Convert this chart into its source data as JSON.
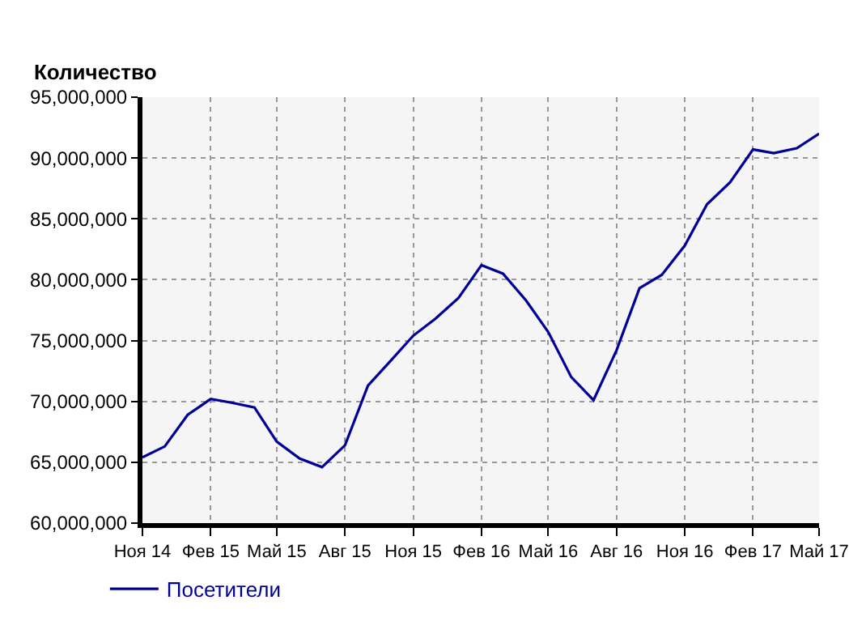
{
  "chart_data": {
    "type": "line",
    "ylabel": "Количество",
    "x": [
      "2014-11",
      "2014-12",
      "2015-01",
      "2015-02",
      "2015-03",
      "2015-04",
      "2015-05",
      "2015-06",
      "2015-07",
      "2015-08",
      "2015-09",
      "2015-10",
      "2015-11",
      "2015-12",
      "2016-01",
      "2016-02",
      "2016-03",
      "2016-04",
      "2016-05",
      "2016-06",
      "2016-07",
      "2016-08",
      "2016-09",
      "2016-10",
      "2016-11",
      "2016-12",
      "2017-01",
      "2017-02",
      "2017-03",
      "2017-04",
      "2017-05"
    ],
    "series": [
      {
        "name": "Посетители",
        "color": "#000099",
        "values": [
          65400000,
          66300000,
          68900000,
          70200000,
          69900000,
          69500000,
          66700000,
          65300000,
          64600000,
          66400000,
          71300000,
          73300000,
          75400000,
          76800000,
          78500000,
          81200000,
          80500000,
          78300000,
          75700000,
          72000000,
          70100000,
          74200000,
          79300000,
          80400000,
          82800000,
          86200000,
          88000000,
          90700000,
          90400000,
          90800000,
          92000000
        ]
      }
    ],
    "xlim": [
      "2014-11",
      "2017-05"
    ],
    "xticks": [
      {
        "value": "2014-11",
        "label": "Ноя 14"
      },
      {
        "value": "2015-02",
        "label": "Фев 15"
      },
      {
        "value": "2015-05",
        "label": "Май 15"
      },
      {
        "value": "2015-08",
        "label": "Авг 15"
      },
      {
        "value": "2015-11",
        "label": "Ноя 15"
      },
      {
        "value": "2016-02",
        "label": "Фев 16"
      },
      {
        "value": "2016-05",
        "label": "Май 16"
      },
      {
        "value": "2016-08",
        "label": "Авг 16"
      },
      {
        "value": "2016-11",
        "label": "Ноя 16"
      },
      {
        "value": "2017-02",
        "label": "Фев 17"
      },
      {
        "value": "2017-05",
        "label": "Май 17"
      }
    ],
    "ylim": [
      60000000,
      95000000
    ],
    "yticks": [
      {
        "value": 60000000,
        "label": "60,000,000"
      },
      {
        "value": 65000000,
        "label": "65,000,000"
      },
      {
        "value": 70000000,
        "label": "70,000,000"
      },
      {
        "value": 75000000,
        "label": "75,000,000"
      },
      {
        "value": 80000000,
        "label": "80,000,000"
      },
      {
        "value": 85000000,
        "label": "85,000,000"
      },
      {
        "value": 90000000,
        "label": "90,000,000"
      },
      {
        "value": 95000000,
        "label": "95,000,000"
      }
    ],
    "grid": true,
    "legend": "bottom left",
    "line_style": "solid",
    "marker": "none"
  }
}
